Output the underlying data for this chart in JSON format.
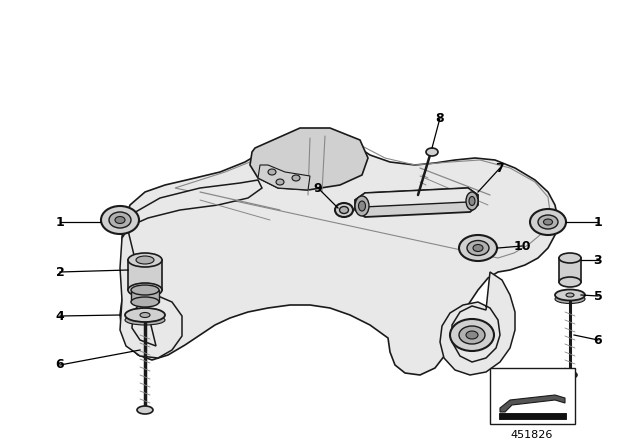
{
  "bg_color": "#ffffff",
  "line_color": "#1a1a1a",
  "gray1": "#e8e8e8",
  "gray2": "#d0d0d0",
  "gray3": "#b0b0b0",
  "gray4": "#888888",
  "gray5": "#555555",
  "part_number": "451826",
  "figsize": [
    6.4,
    4.48
  ],
  "dpi": 100
}
